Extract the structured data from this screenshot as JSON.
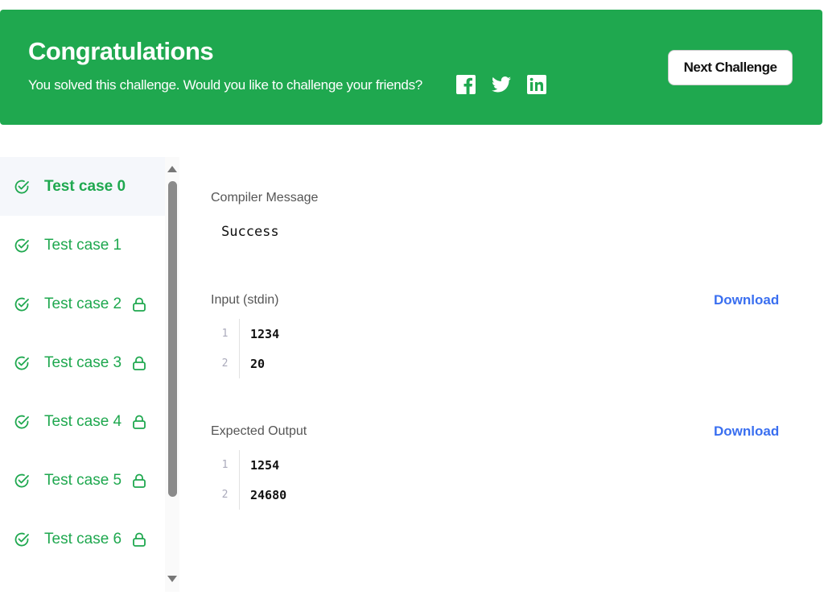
{
  "banner": {
    "title": "Congratulations",
    "subtitle": "You solved this challenge. Would you like to challenge your friends?",
    "social": [
      "facebook-icon",
      "twitter-icon",
      "linkedin-icon"
    ],
    "next_label": "Next Challenge",
    "color": "#1fa84f"
  },
  "sidebar": {
    "items": [
      {
        "label": "Test case 0",
        "locked": false,
        "active": true
      },
      {
        "label": "Test case 1",
        "locked": false
      },
      {
        "label": "Test case 2",
        "locked": true
      },
      {
        "label": "Test case 3",
        "locked": true
      },
      {
        "label": "Test case 4",
        "locked": true
      },
      {
        "label": "Test case 5",
        "locked": true
      },
      {
        "label": "Test case 6",
        "locked": true
      }
    ]
  },
  "main": {
    "compiler_label": "Compiler Message",
    "compiler_message": "Success",
    "input_label": "Input (stdin)",
    "input_download": "Download",
    "input_lines": [
      {
        "n": "1",
        "v": "1234"
      },
      {
        "n": "2",
        "v": "20"
      }
    ],
    "output_label": "Expected Output",
    "output_download": "Download",
    "output_lines": [
      {
        "n": "1",
        "v": "1254"
      },
      {
        "n": "2",
        "v": "24680"
      }
    ]
  }
}
